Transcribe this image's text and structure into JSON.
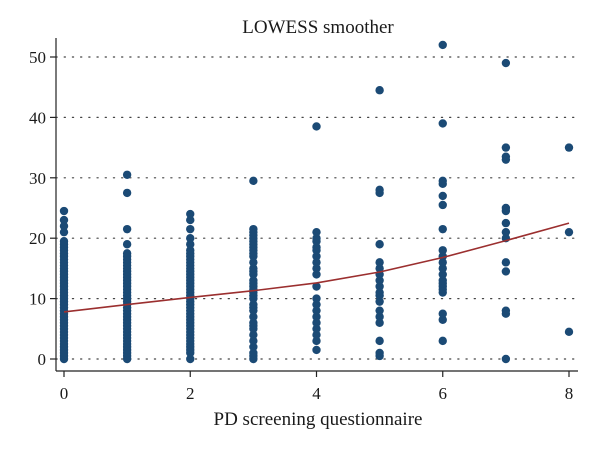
{
  "chart_data": {
    "type": "scatter",
    "title": "LOWESS smoother",
    "xlabel": "PD screening questionnaire",
    "ylabel": "",
    "xlim": [
      0,
      8
    ],
    "ylim": [
      0,
      52
    ],
    "xticks": [
      "0",
      "2",
      "4",
      "6",
      "8"
    ],
    "yticks": [
      "0",
      "10",
      "20",
      "30",
      "40",
      "50"
    ],
    "grid": "horizontal dotted",
    "points": [
      [
        0,
        0
      ],
      [
        0,
        0.5
      ],
      [
        0,
        1
      ],
      [
        0,
        1.5
      ],
      [
        0,
        2
      ],
      [
        0,
        2.5
      ],
      [
        0,
        3
      ],
      [
        0,
        3.5
      ],
      [
        0,
        4
      ],
      [
        0,
        4.5
      ],
      [
        0,
        5
      ],
      [
        0,
        5.5
      ],
      [
        0,
        6
      ],
      [
        0,
        6.5
      ],
      [
        0,
        7
      ],
      [
        0,
        7.5
      ],
      [
        0,
        8
      ],
      [
        0,
        8.5
      ],
      [
        0,
        9
      ],
      [
        0,
        9.5
      ],
      [
        0,
        10
      ],
      [
        0,
        10.5
      ],
      [
        0,
        11
      ],
      [
        0,
        11.5
      ],
      [
        0,
        12
      ],
      [
        0,
        12.5
      ],
      [
        0,
        13
      ],
      [
        0,
        13.5
      ],
      [
        0,
        14
      ],
      [
        0,
        14.5
      ],
      [
        0,
        15
      ],
      [
        0,
        15.5
      ],
      [
        0,
        16
      ],
      [
        0,
        16.5
      ],
      [
        0,
        17
      ],
      [
        0,
        17.5
      ],
      [
        0,
        18
      ],
      [
        0,
        18.5
      ],
      [
        0,
        19
      ],
      [
        0,
        19.5
      ],
      [
        0,
        21
      ],
      [
        0,
        22
      ],
      [
        0,
        23
      ],
      [
        0,
        24.5
      ],
      [
        1,
        0
      ],
      [
        1,
        0.5
      ],
      [
        1,
        1
      ],
      [
        1,
        1.5
      ],
      [
        1,
        2
      ],
      [
        1,
        2.5
      ],
      [
        1,
        3
      ],
      [
        1,
        3.5
      ],
      [
        1,
        4
      ],
      [
        1,
        4.5
      ],
      [
        1,
        5
      ],
      [
        1,
        5.5
      ],
      [
        1,
        6
      ],
      [
        1,
        6.5
      ],
      [
        1,
        7
      ],
      [
        1,
        7.5
      ],
      [
        1,
        8
      ],
      [
        1,
        8.5
      ],
      [
        1,
        9
      ],
      [
        1,
        9.5
      ],
      [
        1,
        10
      ],
      [
        1,
        10.5
      ],
      [
        1,
        11
      ],
      [
        1,
        11.5
      ],
      [
        1,
        12
      ],
      [
        1,
        12.5
      ],
      [
        1,
        13
      ],
      [
        1,
        13.5
      ],
      [
        1,
        14
      ],
      [
        1,
        14.5
      ],
      [
        1,
        15
      ],
      [
        1,
        15.5
      ],
      [
        1,
        16
      ],
      [
        1,
        16.5
      ],
      [
        1,
        17
      ],
      [
        1,
        17.5
      ],
      [
        1,
        19
      ],
      [
        1,
        21.5
      ],
      [
        1,
        27.5
      ],
      [
        1,
        30.5
      ],
      [
        2,
        0
      ],
      [
        2,
        1
      ],
      [
        2,
        1.5
      ],
      [
        2,
        2
      ],
      [
        2,
        2.5
      ],
      [
        2,
        3
      ],
      [
        2,
        3.5
      ],
      [
        2,
        4
      ],
      [
        2,
        4.5
      ],
      [
        2,
        5
      ],
      [
        2,
        5.5
      ],
      [
        2,
        6
      ],
      [
        2,
        6.5
      ],
      [
        2,
        7
      ],
      [
        2,
        7.5
      ],
      [
        2,
        8
      ],
      [
        2,
        8.5
      ],
      [
        2,
        9
      ],
      [
        2,
        9.5
      ],
      [
        2,
        10
      ],
      [
        2,
        10.5
      ],
      [
        2,
        11
      ],
      [
        2,
        11.5
      ],
      [
        2,
        12
      ],
      [
        2,
        12.5
      ],
      [
        2,
        13
      ],
      [
        2,
        13.5
      ],
      [
        2,
        14
      ],
      [
        2,
        14.5
      ],
      [
        2,
        15
      ],
      [
        2,
        15.5
      ],
      [
        2,
        16
      ],
      [
        2,
        16.5
      ],
      [
        2,
        17
      ],
      [
        2,
        17.5
      ],
      [
        2,
        18
      ],
      [
        2,
        19
      ],
      [
        2,
        20
      ],
      [
        2,
        21.5
      ],
      [
        2,
        23
      ],
      [
        2,
        24
      ],
      [
        3,
        0
      ],
      [
        3,
        0.5
      ],
      [
        3,
        1
      ],
      [
        3,
        2
      ],
      [
        3,
        3
      ],
      [
        3,
        4
      ],
      [
        3,
        5
      ],
      [
        3,
        5.5
      ],
      [
        3,
        6
      ],
      [
        3,
        7
      ],
      [
        3,
        8
      ],
      [
        3,
        8.5
      ],
      [
        3,
        9
      ],
      [
        3,
        10
      ],
      [
        3,
        10.5
      ],
      [
        3,
        11
      ],
      [
        3,
        11.5
      ],
      [
        3,
        12
      ],
      [
        3,
        12.5
      ],
      [
        3,
        13
      ],
      [
        3,
        14
      ],
      [
        3,
        14.5
      ],
      [
        3,
        15
      ],
      [
        3,
        16
      ],
      [
        3,
        17
      ],
      [
        3,
        17.5
      ],
      [
        3,
        18
      ],
      [
        3,
        18.5
      ],
      [
        3,
        19
      ],
      [
        3,
        19.5
      ],
      [
        3,
        20
      ],
      [
        3,
        20.5
      ],
      [
        3,
        21
      ],
      [
        3,
        21.5
      ],
      [
        3,
        29.5
      ],
      [
        4,
        1.5
      ],
      [
        4,
        3
      ],
      [
        4,
        4
      ],
      [
        4,
        5
      ],
      [
        4,
        6
      ],
      [
        4,
        7
      ],
      [
        4,
        8
      ],
      [
        4,
        9
      ],
      [
        4,
        10
      ],
      [
        4,
        12
      ],
      [
        4,
        14
      ],
      [
        4,
        15
      ],
      [
        4,
        16
      ],
      [
        4,
        17
      ],
      [
        4,
        18
      ],
      [
        4,
        18.5
      ],
      [
        4,
        19.5
      ],
      [
        4,
        20
      ],
      [
        4,
        21
      ],
      [
        4,
        38.5
      ],
      [
        5,
        0.5
      ],
      [
        5,
        1
      ],
      [
        5,
        3
      ],
      [
        5,
        6
      ],
      [
        5,
        7
      ],
      [
        5,
        8
      ],
      [
        5,
        9.5
      ],
      [
        5,
        10.5
      ],
      [
        5,
        11
      ],
      [
        5,
        12
      ],
      [
        5,
        13
      ],
      [
        5,
        14
      ],
      [
        5,
        15
      ],
      [
        5,
        16
      ],
      [
        5,
        19
      ],
      [
        5,
        27.5
      ],
      [
        5,
        28
      ],
      [
        5,
        44.5
      ],
      [
        6,
        3
      ],
      [
        6,
        6.5
      ],
      [
        6,
        7.5
      ],
      [
        6,
        11
      ],
      [
        6,
        11.5
      ],
      [
        6,
        12
      ],
      [
        6,
        12.5
      ],
      [
        6,
        13
      ],
      [
        6,
        14
      ],
      [
        6,
        15
      ],
      [
        6,
        16
      ],
      [
        6,
        17
      ],
      [
        6,
        18
      ],
      [
        6,
        21.5
      ],
      [
        6,
        25.5
      ],
      [
        6,
        27
      ],
      [
        6,
        29
      ],
      [
        6,
        29.5
      ],
      [
        6,
        39
      ],
      [
        6,
        52
      ],
      [
        7,
        0
      ],
      [
        7,
        7.5
      ],
      [
        7,
        8
      ],
      [
        7,
        14.5
      ],
      [
        7,
        16
      ],
      [
        7,
        20
      ],
      [
        7,
        21
      ],
      [
        7,
        22.5
      ],
      [
        7,
        24.5
      ],
      [
        7,
        25
      ],
      [
        7,
        33
      ],
      [
        7,
        33.5
      ],
      [
        7,
        35
      ],
      [
        7,
        49
      ],
      [
        8,
        4.5
      ],
      [
        8,
        21
      ],
      [
        8,
        35
      ]
    ],
    "lowess": {
      "x": [
        0,
        1,
        2,
        3,
        4,
        5,
        6,
        7,
        8
      ],
      "y": [
        7.8,
        9.0,
        10.2,
        11.3,
        12.6,
        14.4,
        16.8,
        19.6,
        22.5
      ]
    },
    "colors": {
      "points": "#1b4a75",
      "lowess": "#9b2f2f",
      "axis": "#222222",
      "grid": "#444444"
    }
  }
}
